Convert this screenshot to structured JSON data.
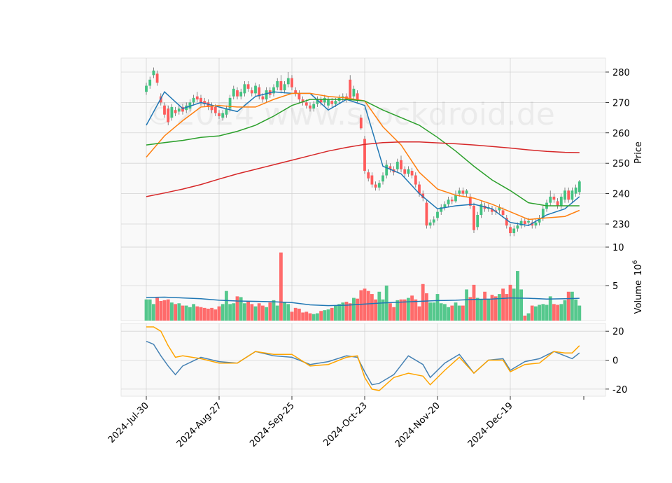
{
  "watermark": "©2024 www.stockdroid.de",
  "chart_data": [
    {
      "type": "candlestick",
      "y_label": "Price",
      "up_color": "#43c281",
      "down_color": "#ff5b5b",
      "ylim": [
        222.4,
        284.6
      ],
      "yticks": [
        230,
        240,
        250,
        260,
        270,
        280
      ],
      "grid": true,
      "open": [
        273.5,
        275.5,
        279,
        279.5,
        272,
        269,
        268,
        265,
        267.5,
        267,
        268.5,
        267.5,
        268,
        270,
        272,
        271.5,
        270.5,
        270,
        269,
        268.5,
        266.5,
        265,
        266,
        268,
        272,
        274,
        272,
        273,
        276,
        274,
        273,
        275,
        272,
        271,
        274,
        273,
        275,
        277,
        274,
        276,
        278,
        274,
        273,
        271,
        270,
        269,
        268,
        269.5,
        271,
        270,
        269,
        270.5,
        269.5,
        270.5,
        271.5,
        272,
        277.5,
        272,
        273,
        265,
        258,
        247,
        246,
        243,
        242,
        244,
        246,
        249,
        248,
        248,
        251,
        248,
        246.5,
        247.5,
        246,
        243,
        240,
        237,
        229.5,
        230.5,
        232,
        234,
        235.5,
        236.5,
        238,
        237.5,
        240,
        241,
        240,
        239,
        236,
        229,
        233,
        236,
        235,
        235,
        234.5,
        234.5,
        234.5,
        232,
        229,
        227,
        228.5,
        229.5,
        231,
        230.5,
        230.5,
        229.5,
        230.5,
        232,
        235,
        237,
        239,
        237.5,
        236,
        238,
        241,
        238,
        240,
        240.5
      ],
      "high": [
        276.5,
        278.5,
        281.5,
        280.5,
        273,
        270,
        269,
        269.5,
        268.5,
        269,
        269.5,
        270,
        271,
        272.5,
        273.5,
        272.5,
        271.5,
        271,
        270,
        269.5,
        267.5,
        267.5,
        269,
        272.5,
        275.5,
        275,
        274.5,
        277,
        277,
        275,
        276.5,
        276,
        273,
        275,
        275,
        276,
        278,
        279,
        277,
        280,
        279,
        275,
        274,
        272,
        271,
        270,
        270.5,
        272,
        272,
        272.5,
        272,
        271.5,
        271.5,
        272.5,
        273,
        273,
        279,
        275.5,
        274,
        266,
        259,
        248,
        247,
        244,
        244.5,
        247,
        251,
        250,
        249,
        251.5,
        252.5,
        249,
        249,
        248.5,
        247,
        244,
        241,
        238,
        231.5,
        232.5,
        235,
        236.5,
        237.5,
        239,
        239,
        241,
        242,
        242,
        241.5,
        240,
        237,
        234,
        237.5,
        237,
        236.5,
        236,
        235.5,
        236.5,
        235.5,
        233,
        230,
        229.5,
        230.5,
        232,
        232,
        232,
        231.5,
        231.5,
        233,
        236,
        238,
        241,
        240,
        238.5,
        240,
        242,
        242,
        242,
        243,
        244.5
      ],
      "low": [
        272.5,
        274.5,
        278,
        275.5,
        269,
        265,
        262.5,
        264,
        265.5,
        266,
        266,
        266.5,
        267,
        269,
        270,
        269,
        268.5,
        267.5,
        266.5,
        265.5,
        264.5,
        264,
        265,
        267,
        271,
        271,
        271,
        272,
        273.5,
        272,
        272,
        271,
        270,
        270,
        271.5,
        272,
        274,
        273,
        273,
        275,
        274,
        272,
        270,
        269,
        268,
        267,
        267,
        268.5,
        269,
        269,
        268,
        268.5,
        268.5,
        269.5,
        270.5,
        270,
        270.5,
        271,
        270,
        261,
        246.5,
        244,
        242,
        241,
        241,
        243,
        245,
        247,
        246,
        247,
        247,
        245.5,
        245.5,
        245,
        242,
        239,
        237.5,
        228.5,
        228.5,
        229.5,
        231,
        233,
        234.5,
        235.5,
        236.5,
        237,
        239,
        239,
        239,
        235,
        227,
        228,
        232,
        234,
        234,
        233,
        233,
        233.5,
        232,
        228.5,
        226,
        226,
        227.5,
        228.5,
        229,
        229.5,
        228.5,
        228.5,
        229.5,
        231,
        234,
        236,
        237,
        235,
        235,
        237,
        237,
        237,
        239,
        239.5
      ],
      "close": [
        275.5,
        277.5,
        280.5,
        276.5,
        270,
        266,
        263.5,
        268.5,
        266.5,
        268,
        267,
        269,
        270,
        271.5,
        271,
        270,
        269.5,
        268.5,
        267.5,
        266.5,
        265.5,
        266.5,
        268,
        271.5,
        274.5,
        272,
        273.5,
        276,
        274.5,
        273,
        275.5,
        272,
        271,
        274,
        272.5,
        275,
        277,
        274,
        276,
        278,
        275,
        273,
        271,
        270,
        269,
        268,
        269.5,
        271,
        270,
        271.5,
        271,
        269.5,
        270.5,
        271.5,
        272,
        271,
        271.5,
        274.5,
        271,
        261.5,
        247.5,
        245,
        243,
        242,
        243.5,
        246,
        249.5,
        248,
        247,
        250.5,
        248,
        246.5,
        248,
        246,
        243,
        240,
        238.5,
        229.5,
        230.5,
        231.5,
        234,
        235.5,
        236.5,
        238,
        237.5,
        239.5,
        241,
        240,
        241,
        236,
        228,
        233,
        236.5,
        235,
        235.5,
        234,
        234,
        235.5,
        233,
        229.5,
        227,
        228.5,
        229.5,
        231,
        230,
        231,
        229.5,
        230.5,
        232,
        235,
        237,
        239,
        238,
        236,
        239,
        241,
        238,
        241,
        242,
        244
      ],
      "series": [
        {
          "color": "#1f77b4",
          "x": [
            0,
            5,
            10,
            15,
            20,
            25,
            30,
            35,
            40,
            45,
            50,
            55,
            60,
            65,
            70,
            75,
            80,
            85,
            90,
            95,
            100,
            105,
            110,
            115,
            119
          ],
          "values": [
            262.5,
            273.5,
            268,
            270,
            268.5,
            267,
            272,
            273.5,
            273,
            273,
            267.5,
            271,
            269,
            249,
            246.5,
            240,
            235,
            236,
            236.5,
            235,
            230.5,
            229.5,
            233,
            235,
            239
          ]
        },
        {
          "color": "#ff7f0e",
          "x": [
            0,
            5,
            10,
            15,
            20,
            25,
            30,
            35,
            40,
            45,
            50,
            55,
            60,
            65,
            70,
            75,
            80,
            85,
            90,
            95,
            100,
            105,
            110,
            115,
            119
          ],
          "values": [
            252,
            259,
            264,
            268.5,
            269,
            268.5,
            268.5,
            271,
            273,
            273,
            272,
            271.5,
            270.5,
            262,
            256,
            247,
            241.5,
            239.5,
            238.5,
            236.5,
            234,
            231.5,
            232,
            232.5,
            234.5
          ]
        },
        {
          "color": "#2ca02c",
          "x": [
            0,
            5,
            10,
            15,
            20,
            25,
            30,
            35,
            40,
            45,
            50,
            55,
            60,
            65,
            70,
            75,
            80,
            85,
            90,
            95,
            100,
            105,
            110,
            115,
            119
          ],
          "values": [
            256,
            256.8,
            257.5,
            258.5,
            259,
            260.5,
            262.5,
            265.5,
            269,
            271,
            271,
            271,
            270.5,
            267.5,
            265,
            262.5,
            258.5,
            254,
            249,
            244.5,
            241,
            237,
            236,
            236,
            236
          ]
        },
        {
          "color": "#d62728",
          "x": [
            0,
            5,
            10,
            15,
            20,
            25,
            30,
            35,
            40,
            45,
            50,
            55,
            60,
            65,
            70,
            75,
            80,
            85,
            90,
            95,
            100,
            105,
            110,
            115,
            119
          ],
          "values": [
            239,
            240.2,
            241.5,
            243,
            244.8,
            246.5,
            248,
            249.5,
            251,
            252.5,
            254,
            255.2,
            256.2,
            256.8,
            257,
            257,
            256.7,
            256.4,
            256,
            255.5,
            255,
            254.4,
            253.9,
            253.6,
            253.5
          ]
        }
      ]
    },
    {
      "type": "bar",
      "y_label": "Volume",
      "y_label_multiplier": "10",
      "y_label_exponent": "6",
      "ylim": [
        0.45,
        10
      ],
      "yticks": [
        5,
        10
      ],
      "grid": true,
      "values": [
        3.2,
        3.2,
        2.6,
        3.4,
        3.0,
        3.1,
        3.2,
        2.8,
        2.6,
        2.7,
        2.4,
        2.4,
        2.2,
        2.6,
        2.3,
        2.2,
        2.1,
        2.0,
        2.1,
        1.9,
        2.3,
        2.6,
        4.3,
        2.6,
        2.7,
        3.6,
        3.5,
        2.7,
        2.9,
        2.6,
        2.3,
        2.7,
        2.4,
        2.2,
        2.8,
        3.1,
        2.4,
        9.3,
        2.9,
        2.6,
        1.6,
        2.1,
        2.0,
        1.5,
        1.6,
        1.4,
        1.3,
        1.4,
        1.7,
        1.8,
        1.9,
        2.1,
        2.4,
        2.6,
        2.8,
        2.9,
        2.7,
        3.4,
        3.3,
        4.4,
        4.6,
        4.3,
        3.9,
        3.2,
        4.2,
        3.2,
        5.0,
        2.7,
        2.2,
        3.1,
        3.2,
        3.2,
        3.4,
        3.7,
        3.2,
        2.3,
        5.2,
        4.0,
        2.8,
        2.8,
        3.9,
        2.7,
        2.6,
        2.2,
        2.4,
        2.8,
        2.4,
        2.4,
        4.5,
        3.5,
        5.1,
        3.4,
        3.2,
        4.2,
        3.2,
        3.8,
        3.6,
        3.9,
        4.6,
        3.9,
        5.1,
        4.6,
        6.9,
        4.5,
        1.1,
        1.4,
        2.4,
        2.3,
        2.5,
        2.6,
        2.5,
        3.6,
        2.6,
        2.5,
        2.6,
        3.1,
        4.2,
        4.2,
        3.2,
        2.4
      ],
      "series": [
        {
          "color": "#1f77b4",
          "x": [
            0,
            5,
            10,
            15,
            20,
            25,
            30,
            35,
            40,
            45,
            50,
            55,
            60,
            65,
            70,
            75,
            80,
            85,
            90,
            95,
            100,
            105,
            110,
            115,
            119
          ],
          "values": [
            3.45,
            3.5,
            3.4,
            3.3,
            3.1,
            3.0,
            2.95,
            2.9,
            2.8,
            2.5,
            2.4,
            2.45,
            2.6,
            2.75,
            2.85,
            2.95,
            3.05,
            3.1,
            3.2,
            3.25,
            3.4,
            3.35,
            3.25,
            3.3,
            3.35
          ]
        }
      ]
    },
    {
      "type": "line",
      "ylim": [
        -24.9,
        25.4
      ],
      "yticks": [
        -20,
        0,
        20
      ],
      "grid": true,
      "categories": [
        "2024-Jul-30",
        null,
        null,
        null,
        null,
        null,
        null,
        null,
        null,
        null,
        null,
        null,
        null,
        null,
        null,
        null,
        null,
        null,
        null,
        null,
        "2024-Aug-27",
        null,
        null,
        null,
        null,
        null,
        null,
        null,
        null,
        null,
        null,
        null,
        null,
        null,
        null,
        null,
        null,
        null,
        null,
        null,
        "2024-Sep-25",
        null,
        null,
        null,
        null,
        null,
        null,
        null,
        null,
        null,
        null,
        null,
        null,
        null,
        null,
        null,
        null,
        null,
        null,
        null,
        "2024-Oct-23",
        null,
        null,
        null,
        null,
        null,
        null,
        null,
        null,
        null,
        null,
        null,
        null,
        null,
        null,
        null,
        null,
        null,
        null,
        null,
        "2024-Nov-20",
        null,
        null,
        null,
        null,
        null,
        null,
        null,
        null,
        null,
        null,
        null,
        null,
        null,
        null,
        null,
        null,
        null,
        null,
        null,
        "2024-Dec-19",
        null,
        null,
        null,
        null,
        null,
        null,
        null,
        null,
        null,
        null,
        null,
        null,
        null,
        null,
        null,
        null,
        null,
        null,
        null
      ],
      "series": [
        {
          "color": "#4682b4",
          "x": [
            0,
            2,
            4,
            6,
            8,
            10,
            15,
            20,
            25,
            30,
            35,
            40,
            45,
            50,
            55,
            58,
            60,
            62,
            64,
            68,
            72,
            76,
            78,
            82,
            86,
            90,
            94,
            98,
            100,
            104,
            108,
            112,
            115,
            117,
            119
          ],
          "values": [
            13,
            11,
            3,
            -4,
            -10,
            -4,
            2,
            -1,
            -2,
            6,
            3,
            2,
            -3,
            -1,
            3,
            2,
            -8,
            -17,
            -16,
            -10,
            3,
            -3,
            -12,
            -2,
            4,
            -9,
            0,
            1,
            -7,
            -1,
            1,
            6,
            3,
            1,
            5
          ]
        },
        {
          "color": "#ffa500",
          "x": [
            0,
            2,
            4,
            6,
            8,
            10,
            15,
            20,
            25,
            30,
            35,
            40,
            45,
            50,
            55,
            58,
            60,
            62,
            64,
            68,
            72,
            76,
            78,
            82,
            86,
            90,
            94,
            98,
            100,
            104,
            108,
            112,
            115,
            117,
            119
          ],
          "values": [
            23,
            23,
            20,
            10,
            2,
            3,
            1,
            -2,
            -2,
            6,
            4,
            4,
            -4,
            -3,
            2,
            3,
            -12,
            -20,
            -21,
            -12,
            -9,
            -11,
            -17,
            -7,
            2,
            -9,
            0,
            0,
            -8,
            -3,
            -2,
            6,
            5,
            5,
            10
          ]
        }
      ]
    }
  ]
}
